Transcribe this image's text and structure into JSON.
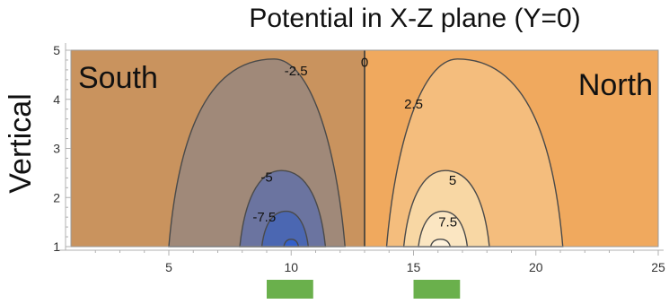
{
  "chart_data": {
    "type": "contour",
    "title": "Potential in X-Z plane (Y=0)",
    "xlabel": "",
    "ylabel": "Vertical",
    "xlim": [
      1,
      25
    ],
    "ylim": [
      1,
      5
    ],
    "xticks": [
      "5",
      "10",
      "15",
      "20",
      "25"
    ],
    "yticks": [
      "1",
      "2",
      "3",
      "4",
      "5"
    ],
    "region_labels": {
      "left": "South",
      "right": "North"
    },
    "zero_line_x": 13,
    "contour_labels": [
      {
        "text": "-2.5",
        "x": 10.2,
        "y": 4.58
      },
      {
        "text": "0",
        "x": 13.0,
        "y": 4.75
      },
      {
        "text": "2.5",
        "x": 15.0,
        "y": 3.9
      },
      {
        "text": "-5",
        "x": 9.0,
        "y": 2.42
      },
      {
        "text": "5",
        "x": 16.6,
        "y": 2.35
      },
      {
        "text": "-7.5",
        "x": 8.9,
        "y": 1.6
      },
      {
        "text": "7.5",
        "x": 16.4,
        "y": 1.5
      }
    ],
    "markers": [
      {
        "x_start": 9.0,
        "x_end": 10.9,
        "color": "#6ab04c"
      },
      {
        "x_start": 15.0,
        "x_end": 16.9,
        "color": "#6ab04c"
      }
    ],
    "colors": {
      "south_bg": "#c9935e",
      "north_bg": "#f0a95e",
      "neg_1": "#a08979",
      "neg_2": "#6b74a0",
      "neg_3": "#4b67b2",
      "neg_4": "#3560c8",
      "pos_1": "#f4bd7d",
      "pos_2": "#f8d7a4",
      "pos_3": "#fbe6c2",
      "pos_4": "#fff2dc",
      "contour_line": "#4a4a4a"
    }
  }
}
